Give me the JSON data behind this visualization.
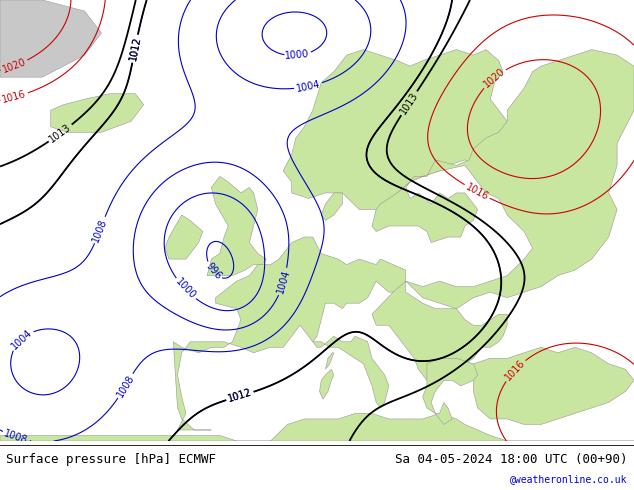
{
  "title_left": "Surface pressure [hPa] ECMWF",
  "title_right": "Sa 04-05-2024 18:00 UTC (00+90)",
  "watermark": "@weatheronline.co.uk",
  "bg_color_ocean": "#d8d8d8",
  "bg_color_land": "#c8e6a0",
  "bg_color_greenland": "#c8c8c8",
  "contour_blue_color": "#0000cc",
  "contour_black_color": "#000000",
  "contour_red_color": "#cc0000",
  "text_color_left": "#000000",
  "text_color_right": "#000000",
  "text_color_watermark": "#0000ee",
  "figsize": [
    6.34,
    4.9
  ],
  "dpi": 100,
  "font_size_footer": 9,
  "font_size_labels": 7
}
